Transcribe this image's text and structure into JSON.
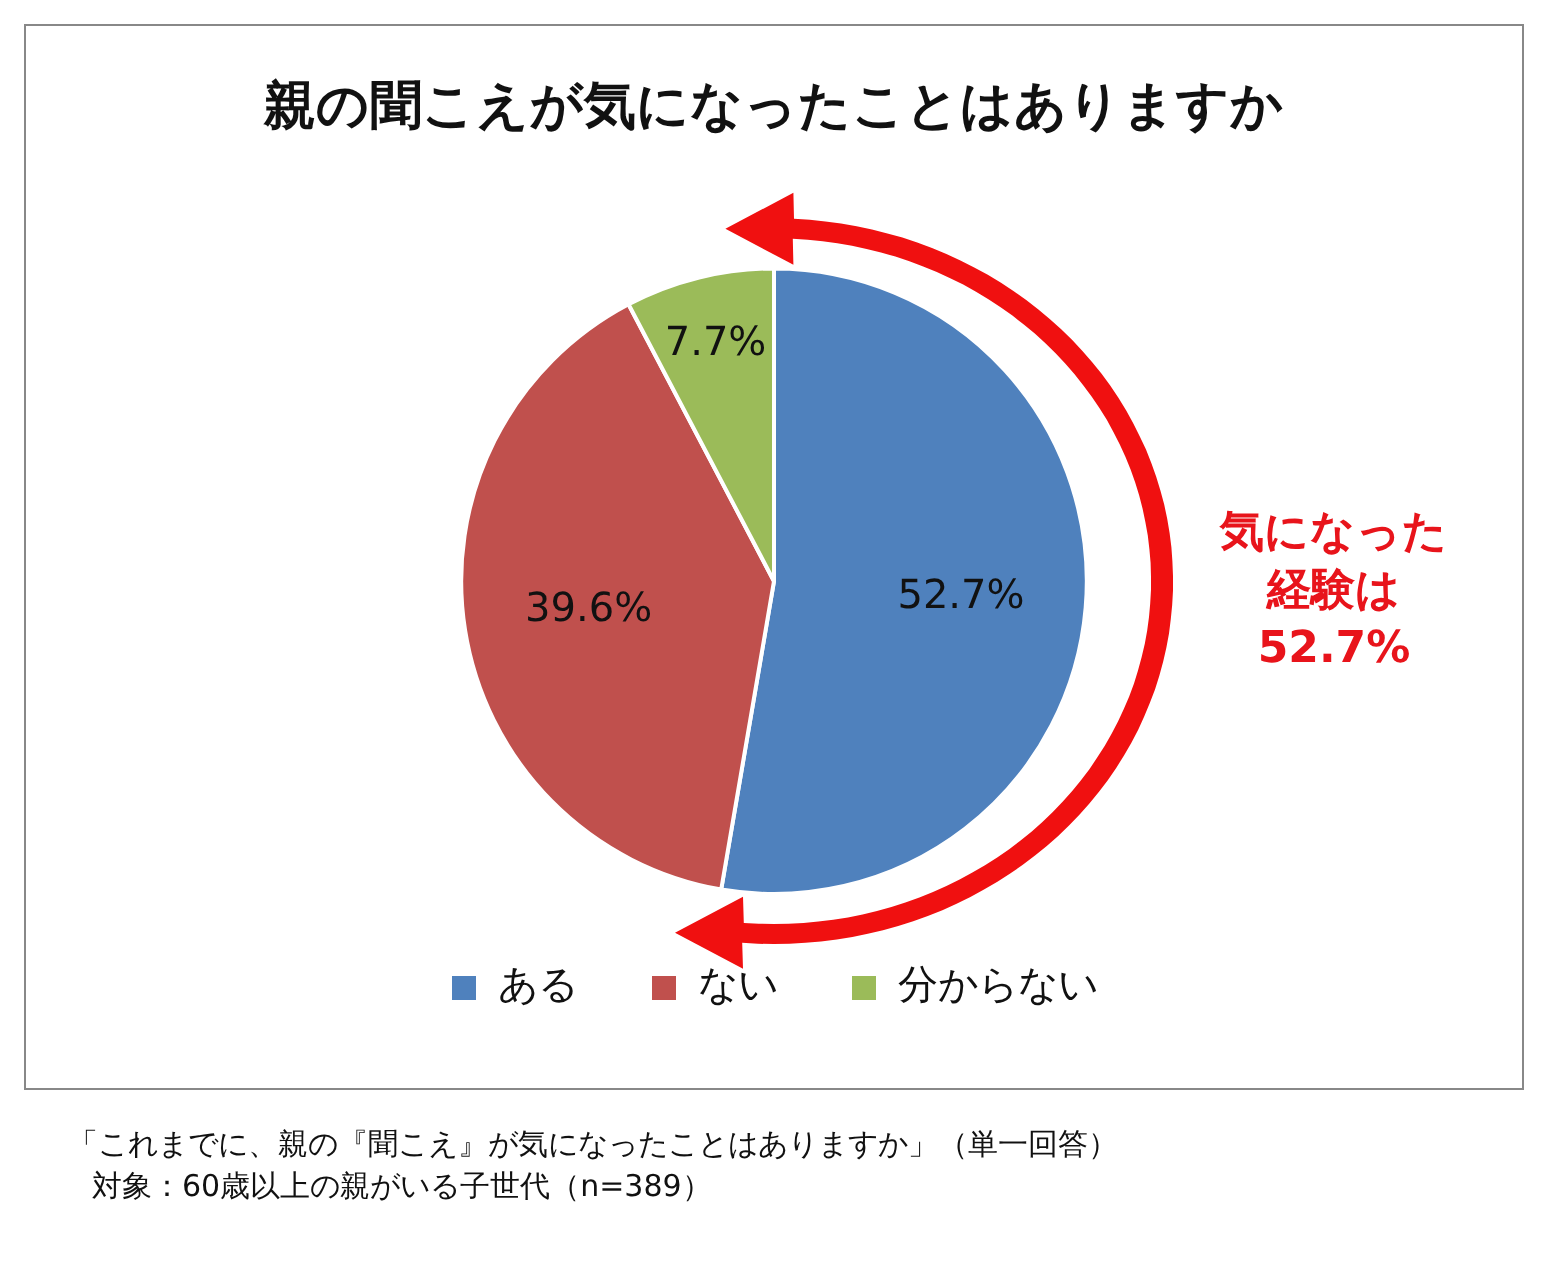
{
  "chart_data": {
    "type": "pie",
    "title": "親の聞こえが気になったことはありますか",
    "categories": [
      "ある",
      "ない",
      "分からない"
    ],
    "values": [
      52.7,
      39.6,
      7.7
    ],
    "colors": [
      "#4f81bd",
      "#c0504d",
      "#9bbb59"
    ],
    "value_labels": [
      "52.7%",
      "39.6%",
      "7.7%"
    ],
    "legend": "bottom",
    "annotations": [
      "気になった経験は52.7%",
      "「これまでに、親の『聞こえ』が気になったことはありますか」（単一回答）",
      "対象：60歳以上の親がいる子世代（n=389）"
    ]
  }
}
